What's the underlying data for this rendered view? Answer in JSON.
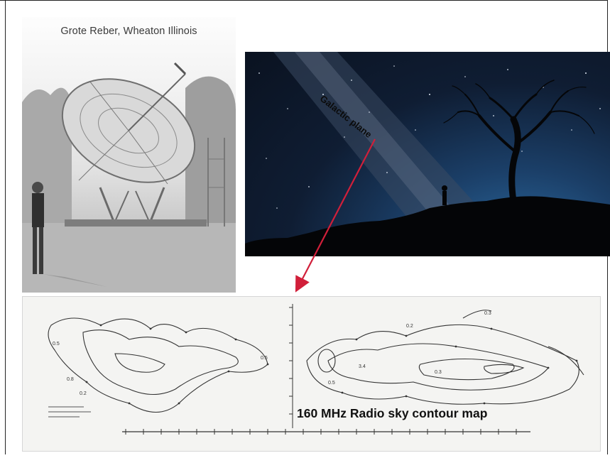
{
  "slide": {
    "photo_caption": "Grote Reber, Wheaton Illinois",
    "sky_label": "Galactic plane",
    "contour_title": "160 MHz Radio sky contour map"
  },
  "contour_map": {
    "contour_labels": [
      "0.5",
      "0.5",
      "0.8",
      "0.2",
      "0.2",
      "0.5",
      "3.4",
      "0.3",
      "0.3"
    ]
  },
  "colors": {
    "arrow": "#d11f3a",
    "sky_dark": "#0a1220",
    "sky_glow": "#2d6ea5"
  }
}
